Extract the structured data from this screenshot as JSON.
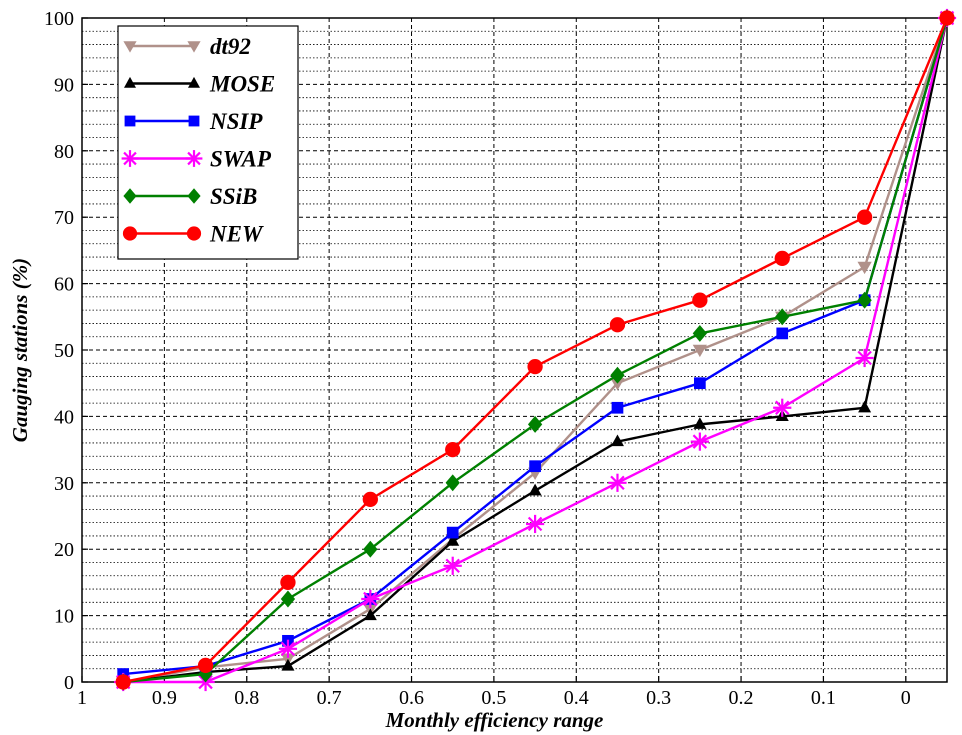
{
  "chart_data": {
    "type": "line",
    "title": "",
    "xlabel": "Monthly efficiency range",
    "ylabel": "Gauging stations (%)",
    "xlim": [
      1.0,
      -0.05
    ],
    "ylim": [
      0,
      100
    ],
    "x_reversed": true,
    "x_ticks": [
      "1",
      "0.9",
      "0.8",
      "0.7",
      "0.6",
      "0.5",
      "0.4",
      "0.3",
      "0.2",
      "0.1",
      "0"
    ],
    "y_ticks": [
      "0",
      "10",
      "20",
      "30",
      "40",
      "50",
      "60",
      "70",
      "80",
      "90",
      "100"
    ],
    "grid": true,
    "legend_position": "top-left",
    "x": [
      0.95,
      0.85,
      0.75,
      0.65,
      0.55,
      0.45,
      0.35,
      0.25,
      0.15,
      0.05,
      -0.05
    ],
    "series": [
      {
        "name": "dt92",
        "color": "#b0918a",
        "marker": "triangle-down",
        "values": [
          0,
          2.2,
          3.5,
          11.0,
          21.5,
          31.5,
          45.0,
          50.0,
          55.0,
          62.5,
          100
        ]
      },
      {
        "name": "MOSE",
        "color": "#000000",
        "marker": "triangle-up",
        "values": [
          0,
          1.5,
          2.4,
          10.0,
          21.2,
          28.8,
          36.2,
          38.8,
          40.0,
          41.3,
          100
        ]
      },
      {
        "name": "NSIP",
        "color": "#0000ff",
        "marker": "square",
        "values": [
          1.2,
          2.4,
          6.2,
          12.5,
          22.5,
          32.5,
          41.3,
          45.0,
          52.5,
          57.5,
          100
        ]
      },
      {
        "name": "SWAP",
        "color": "#ff00ff",
        "marker": "asterisk",
        "values": [
          0,
          0,
          5.0,
          12.5,
          17.5,
          23.8,
          30.0,
          36.2,
          41.3,
          48.8,
          100
        ]
      },
      {
        "name": "SSiB",
        "color": "#008000",
        "marker": "diamond",
        "values": [
          0,
          1.2,
          12.5,
          20.0,
          30.0,
          38.8,
          46.2,
          52.5,
          55.0,
          57.5,
          100
        ]
      },
      {
        "name": "NEW",
        "color": "#ff0000",
        "marker": "circle",
        "values": [
          0,
          2.5,
          15.0,
          27.5,
          35.0,
          47.5,
          53.8,
          57.5,
          63.8,
          70.0,
          100
        ]
      }
    ]
  }
}
